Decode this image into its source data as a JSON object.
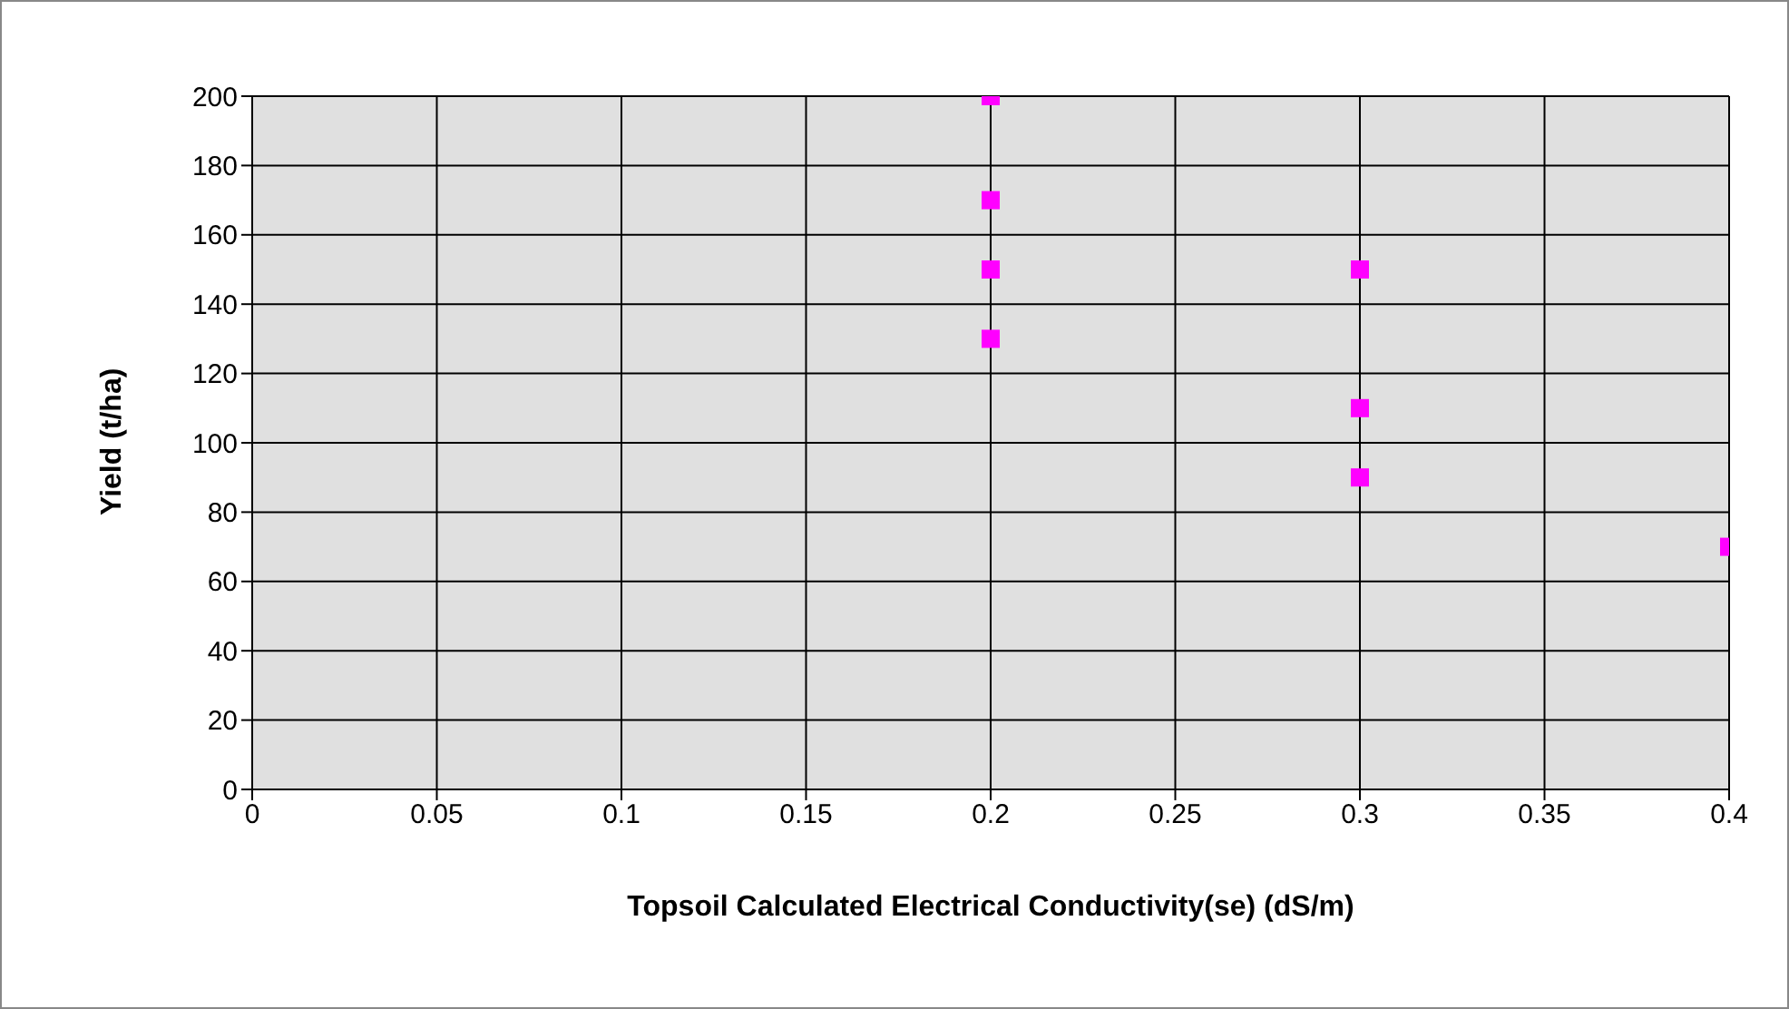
{
  "chart_data": {
    "type": "scatter",
    "xlabel": "Topsoil Calculated Electrical Conductivity(se) (dS/m)",
    "ylabel": "Yield (t/ha)",
    "x": [
      0.2,
      0.2,
      0.2,
      0.2,
      0.3,
      0.3,
      0.3,
      0.4
    ],
    "values": [
      200,
      170,
      150,
      130,
      150,
      110,
      90,
      70
    ],
    "color": "#ff00ff",
    "marker": "square",
    "grid": true,
    "legend": false,
    "xlim": [
      0,
      0.4
    ],
    "xticks": [
      0,
      0.05,
      0.1,
      0.15,
      0.2,
      0.25,
      0.3,
      0.35,
      0.4
    ],
    "ylim": [
      0,
      200
    ],
    "yticks": [
      0,
      20,
      40,
      60,
      80,
      100,
      120,
      140,
      160,
      180,
      200
    ]
  }
}
